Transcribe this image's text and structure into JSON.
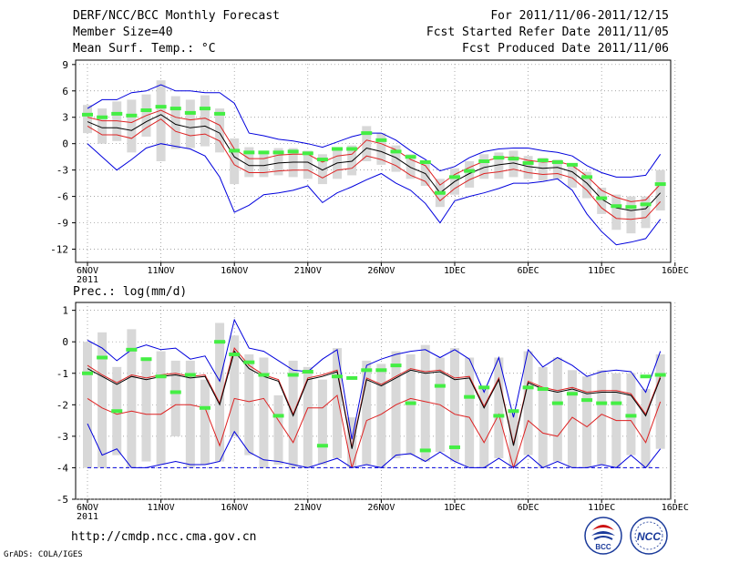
{
  "header": {
    "title": "DERF/NCC/BCC Monthly Forecast",
    "member_size": "Member Size=40",
    "variable": "Mean Surf. Temp.: °C",
    "period": "For 2011/11/06-2011/12/15",
    "start_date": "Fcst Started Refer Date 2011/11/05",
    "produced_date": "Fcst Produced Date 2011/11/06"
  },
  "footer": {
    "url": "http://cmdp.ncc.cma.gov.cn",
    "grads": "GrADS: COLA/IGES",
    "logo_left_text": "BCC",
    "logo_right_text": "NCC"
  },
  "colors": {
    "band": "#d8d8d8",
    "green": "#44ee44",
    "blue": "#0000dd",
    "red": "#dd2222",
    "black": "#000000",
    "grid": "#888888"
  },
  "chart_data": [
    {
      "type": "line",
      "title": "Mean Surf. Temp.: °C",
      "x_tick_labels": [
        "6NOV",
        "11NOV",
        "16NOV",
        "21NOV",
        "26NOV",
        "1DEC",
        "6DEC",
        "11DEC",
        "16DEC"
      ],
      "x_year_label": "2011",
      "y_ticks": [
        9,
        6,
        3,
        0,
        -3,
        -6,
        -9,
        -12
      ],
      "ylim": [
        -13.5,
        9.5
      ],
      "days": 40,
      "series": [
        {
          "name": "max",
          "values": [
            4.0,
            5.0,
            5.0,
            5.8,
            6.0,
            6.7,
            6.0,
            6.0,
            5.8,
            5.8,
            4.6,
            1.2,
            0.9,
            0.5,
            0.3,
            0.0,
            -0.4,
            0.2,
            0.8,
            1.2,
            1.2,
            0.4,
            -0.8,
            -1.8,
            -3.1,
            -2.6,
            -1.6,
            -0.9,
            -0.6,
            -0.5,
            -0.5,
            -0.8,
            -1.0,
            -1.4,
            -2.5,
            -3.3,
            -3.8,
            -3.8,
            -3.6,
            -1.2
          ]
        },
        {
          "name": "plus_sd",
          "values": [
            3.0,
            2.6,
            2.6,
            2.4,
            3.2,
            3.8,
            3.0,
            2.7,
            2.9,
            2.1,
            -0.6,
            -1.7,
            -1.7,
            -1.3,
            -1.2,
            -1.2,
            -2.1,
            -1.4,
            -1.2,
            0.4,
            0.0,
            -0.7,
            -1.8,
            -2.5,
            -4.7,
            -3.5,
            -2.7,
            -2.0,
            -1.6,
            -1.5,
            -1.9,
            -2.1,
            -2.0,
            -2.5,
            -3.7,
            -5.3,
            -6.1,
            -6.6,
            -6.4,
            -4.6
          ]
        },
        {
          "name": "mean",
          "values": [
            2.5,
            1.8,
            1.8,
            1.5,
            2.5,
            3.3,
            2.2,
            1.8,
            2.0,
            1.2,
            -1.5,
            -2.5,
            -2.5,
            -2.2,
            -2.1,
            -2.1,
            -3.0,
            -2.2,
            -2.0,
            -0.5,
            -0.9,
            -1.6,
            -2.7,
            -3.4,
            -5.6,
            -4.3,
            -3.4,
            -2.7,
            -2.4,
            -2.2,
            -2.6,
            -2.8,
            -2.7,
            -3.2,
            -4.5,
            -6.3,
            -7.3,
            -7.6,
            -7.4,
            -5.6
          ]
        },
        {
          "name": "minus_sd",
          "values": [
            2.0,
            1.0,
            1.0,
            0.6,
            1.8,
            2.8,
            1.4,
            0.9,
            1.1,
            0.3,
            -2.4,
            -3.3,
            -3.3,
            -3.1,
            -3.0,
            -3.0,
            -3.9,
            -3.0,
            -2.8,
            -1.4,
            -1.8,
            -2.5,
            -3.6,
            -4.3,
            -6.5,
            -5.1,
            -4.1,
            -3.4,
            -3.2,
            -2.9,
            -3.3,
            -3.5,
            -3.4,
            -3.9,
            -5.3,
            -7.3,
            -8.5,
            -8.6,
            -8.4,
            -6.6
          ]
        },
        {
          "name": "min",
          "values": [
            0.0,
            -1.5,
            -3.0,
            -1.8,
            -0.5,
            0.0,
            -0.3,
            -0.6,
            -1.4,
            -3.8,
            -7.8,
            -7.0,
            -5.8,
            -5.6,
            -5.3,
            -4.8,
            -6.7,
            -5.6,
            -4.9,
            -4.1,
            -3.4,
            -4.5,
            -5.3,
            -6.8,
            -9.0,
            -6.5,
            -6.0,
            -5.6,
            -5.1,
            -4.5,
            -4.5,
            -4.3,
            -4.0,
            -5.3,
            -8.0,
            -10.0,
            -11.5,
            -11.2,
            -10.8,
            -8.6
          ]
        },
        {
          "name": "forecast",
          "values": [
            3.3,
            3.0,
            3.4,
            3.2,
            3.8,
            4.2,
            4.0,
            3.5,
            4.0,
            3.4,
            -0.8,
            -1.0,
            -1.0,
            -1.0,
            -0.9,
            -1.1,
            -1.8,
            -0.6,
            -0.6,
            1.2,
            0.4,
            -0.9,
            -1.5,
            -2.1,
            -5.6,
            -3.8,
            -3.1,
            -2.0,
            -1.6,
            -1.7,
            -2.2,
            -1.9,
            -2.1,
            -2.4,
            -3.8,
            -6.2,
            -7.1,
            -7.2,
            -6.9,
            -4.6
          ]
        }
      ],
      "band_ranges": [
        [
          1.2,
          4.4
        ],
        [
          0.0,
          4.0
        ],
        [
          0.3,
          4.8
        ],
        [
          -1.0,
          5.0
        ],
        [
          0.8,
          5.6
        ],
        [
          -2.0,
          7.2
        ],
        [
          -0.6,
          5.4
        ],
        [
          -0.5,
          5.0
        ],
        [
          -0.3,
          5.5
        ],
        [
          -1.0,
          4.0
        ],
        [
          -4.6,
          0.6
        ],
        [
          -3.8,
          -0.4
        ],
        [
          -3.8,
          -1.0
        ],
        [
          -3.6,
          -0.5
        ],
        [
          -3.8,
          -0.5
        ],
        [
          -4.0,
          -0.8
        ],
        [
          -4.6,
          -1.2
        ],
        [
          -4.0,
          -0.4
        ],
        [
          -3.6,
          -0.2
        ],
        [
          -2.0,
          2.0
        ],
        [
          -2.4,
          1.2
        ],
        [
          -3.2,
          -0.2
        ],
        [
          -4.0,
          -1.2
        ],
        [
          -4.8,
          -2.0
        ],
        [
          -7.2,
          -4.0
        ],
        [
          -5.8,
          -2.8
        ],
        [
          -5.0,
          -2.0
        ],
        [
          -4.0,
          -1.2
        ],
        [
          -4.0,
          -1.0
        ],
        [
          -3.8,
          -0.8
        ],
        [
          -4.0,
          -1.4
        ],
        [
          -4.2,
          -1.6
        ],
        [
          -4.0,
          -1.8
        ],
        [
          -5.0,
          -2.4
        ],
        [
          -6.2,
          -3.2
        ],
        [
          -8.0,
          -5.0
        ],
        [
          -9.8,
          -5.8
        ],
        [
          -10.2,
          -6.0
        ],
        [
          -9.6,
          -6.0
        ],
        [
          -7.6,
          -3.0
        ]
      ]
    },
    {
      "type": "line",
      "title": "Prec.: log(mm/d)",
      "x_tick_labels": [
        "6NOV",
        "11NOV",
        "16NOV",
        "21NOV",
        "26NOV",
        "1DEC",
        "6DEC",
        "11DEC",
        "16DEC"
      ],
      "x_year_label": "2011",
      "y_ticks": [
        1,
        0,
        -1,
        -2,
        -3,
        -4,
        -5
      ],
      "ylim": [
        -5,
        1.25
      ],
      "days": 40,
      "series": [
        {
          "name": "max",
          "values": [
            0.05,
            -0.2,
            -0.6,
            -0.25,
            -0.1,
            -0.25,
            -0.2,
            -0.55,
            -0.45,
            -1.25,
            0.7,
            -0.2,
            -0.3,
            -0.6,
            -0.9,
            -0.95,
            -0.55,
            -0.25,
            -3.1,
            -0.75,
            -0.55,
            -0.4,
            -0.3,
            -0.25,
            -0.5,
            -0.25,
            -0.55,
            -1.6,
            -0.5,
            -2.4,
            -0.25,
            -0.8,
            -0.5,
            -0.75,
            -1.1,
            -0.95,
            -0.9,
            -0.95,
            -1.6,
            -0.3
          ]
        },
        {
          "name": "plus_sd",
          "values": [
            -0.75,
            -1.05,
            -1.3,
            -1.05,
            -1.15,
            -1.05,
            -1.0,
            -1.1,
            -1.05,
            -1.95,
            -0.2,
            -0.75,
            -1.05,
            -1.2,
            -2.3,
            -1.15,
            -1.05,
            -0.9,
            -3.35,
            -1.15,
            -1.35,
            -1.1,
            -0.85,
            -0.95,
            -0.9,
            -1.15,
            -1.1,
            -2.05,
            -1.15,
            -3.25,
            -1.25,
            -1.45,
            -1.55,
            -1.45,
            -1.6,
            -1.55,
            -1.55,
            -1.65,
            -2.3,
            -1.1
          ]
        },
        {
          "name": "mean",
          "values": [
            -0.85,
            -1.1,
            -1.35,
            -1.1,
            -1.2,
            -1.1,
            -1.05,
            -1.15,
            -1.1,
            -2.0,
            -0.3,
            -0.85,
            -1.1,
            -1.25,
            -2.35,
            -1.2,
            -1.1,
            -0.95,
            -3.4,
            -1.2,
            -1.4,
            -1.15,
            -0.9,
            -1.0,
            -0.95,
            -1.2,
            -1.15,
            -2.1,
            -1.2,
            -3.3,
            -1.3,
            -1.5,
            -1.6,
            -1.5,
            -1.65,
            -1.6,
            -1.6,
            -1.7,
            -2.35,
            -1.15
          ]
        },
        {
          "name": "minus_sd",
          "values": [
            -1.8,
            -2.1,
            -2.3,
            -2.2,
            -2.3,
            -2.3,
            -2.0,
            -2.0,
            -2.1,
            -3.3,
            -1.8,
            -1.9,
            -1.8,
            -2.5,
            -3.2,
            -2.1,
            -2.1,
            -1.7,
            -4.0,
            -2.5,
            -2.3,
            -2.0,
            -1.8,
            -1.9,
            -2.0,
            -2.3,
            -2.4,
            -3.2,
            -2.3,
            -4.0,
            -2.5,
            -2.9,
            -3.0,
            -2.4,
            -2.7,
            -2.3,
            -2.5,
            -2.5,
            -3.2,
            -1.9
          ]
        },
        {
          "name": "min",
          "values": [
            -2.6,
            -3.6,
            -3.4,
            -4.0,
            -4.0,
            -3.9,
            -3.8,
            -3.9,
            -3.9,
            -3.8,
            -2.85,
            -3.5,
            -3.75,
            -3.8,
            -3.9,
            -4.0,
            -3.85,
            -3.7,
            -4.0,
            -3.9,
            -4.0,
            -3.6,
            -3.55,
            -3.8,
            -3.5,
            -3.8,
            -4.0,
            -4.0,
            -3.7,
            -4.0,
            -3.6,
            -4.0,
            -3.8,
            -4.0,
            -4.0,
            -3.9,
            -4.0,
            -3.6,
            -4.0,
            -3.4
          ]
        },
        {
          "name": "zero_rain",
          "values": [
            -4,
            -4,
            -4,
            -4,
            -4,
            -4,
            -4,
            -4,
            -4,
            -4,
            -4,
            -4,
            -4,
            -4,
            -4,
            -4,
            -4,
            -4,
            -4,
            -4,
            -4,
            -4,
            -4,
            -4,
            -4,
            -4,
            -4,
            -4,
            -4,
            -4,
            -4,
            -4,
            -4,
            -4,
            -4,
            -4,
            -4,
            -4,
            -4,
            -4
          ]
        },
        {
          "name": "forecast",
          "values": [
            -1.0,
            -0.5,
            -2.2,
            -0.25,
            -0.55,
            -1.1,
            -1.6,
            -1.05,
            -2.1,
            0.0,
            -0.4,
            -0.65,
            -1.05,
            -2.35,
            -1.05,
            -0.95,
            -3.3,
            -1.1,
            -1.15,
            -0.9,
            -0.9,
            -0.75,
            -1.95,
            -3.45,
            -1.4,
            -3.35,
            -1.75,
            -1.45,
            -2.35,
            -2.2,
            -1.45,
            -1.5,
            -1.95,
            -1.65,
            -1.85,
            -1.95,
            -1.95,
            -2.35,
            -1.1,
            -1.05
          ]
        }
      ],
      "band_ranges": [
        [
          -4.0,
          0.0
        ],
        [
          -4.0,
          0.3
        ],
        [
          -3.6,
          -0.8
        ],
        [
          -4.0,
          0.4
        ],
        [
          -3.8,
          -0.5
        ],
        [
          -3.9,
          -0.3
        ],
        [
          -3.0,
          -0.6
        ],
        [
          -4.0,
          -0.6
        ],
        [
          -3.9,
          -1.2
        ],
        [
          -3.8,
          0.6
        ],
        [
          -3.0,
          0.2
        ],
        [
          -3.6,
          -0.4
        ],
        [
          -4.0,
          -0.5
        ],
        [
          -3.9,
          -1.7
        ],
        [
          -4.0,
          -0.6
        ],
        [
          -4.0,
          -0.8
        ],
        [
          -3.9,
          -1.2
        ],
        [
          -3.7,
          -0.2
        ],
        [
          -4.0,
          -2.4
        ],
        [
          -3.9,
          -0.6
        ],
        [
          -4.0,
          -0.7
        ],
        [
          -3.7,
          -0.3
        ],
        [
          -3.6,
          -0.4
        ],
        [
          -3.8,
          -0.1
        ],
        [
          -3.5,
          -0.5
        ],
        [
          -3.8,
          -0.2
        ],
        [
          -4.0,
          -0.5
        ],
        [
          -4.0,
          -1.5
        ],
        [
          -3.7,
          -0.5
        ],
        [
          -4.0,
          -2.2
        ],
        [
          -3.6,
          -0.3
        ],
        [
          -4.0,
          -0.8
        ],
        [
          -3.8,
          -0.5
        ],
        [
          -4.0,
          -0.9
        ],
        [
          -4.0,
          -1.1
        ],
        [
          -3.9,
          -0.9
        ],
        [
          -4.0,
          -1.0
        ],
        [
          -3.6,
          -1.0
        ],
        [
          -4.0,
          -1.5
        ],
        [
          -3.4,
          -0.4
        ]
      ]
    }
  ]
}
